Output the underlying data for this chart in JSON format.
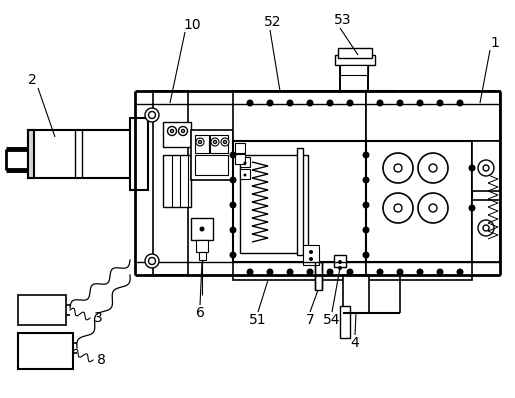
{
  "bg_color": "#ffffff",
  "line_color": "#000000",
  "fig_width": 5.15,
  "fig_height": 3.98,
  "dpi": 100
}
